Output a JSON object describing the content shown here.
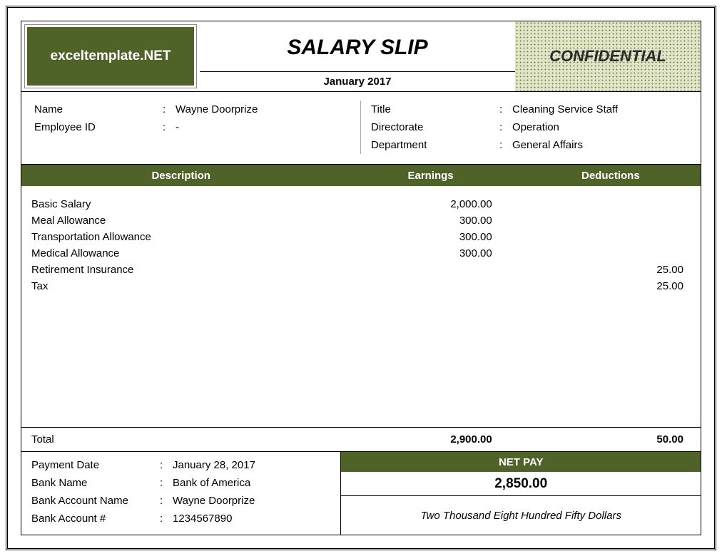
{
  "brand": "exceltemplate.NET",
  "title": "SALARY SLIP",
  "period": "January 2017",
  "confidential": "CONFIDENTIAL",
  "colors": {
    "accent": "#4f6228",
    "confidential_bg": "#e0e4c8",
    "border": "#000000"
  },
  "employee_left": {
    "name_label": "Name",
    "name_value": "Wayne Doorprize",
    "id_label": "Employee ID",
    "id_value": "-"
  },
  "employee_right": {
    "title_label": "Title",
    "title_value": "Cleaning Service Staff",
    "directorate_label": "Directorate",
    "directorate_value": "Operation",
    "department_label": "Department",
    "department_value": "General Affairs"
  },
  "columns": {
    "description": "Description",
    "earnings": "Earnings",
    "deductions": "Deductions"
  },
  "items": [
    {
      "desc": "Basic Salary",
      "earn": "2,000.00",
      "ded": ""
    },
    {
      "desc": "Meal Allowance",
      "earn": "300.00",
      "ded": ""
    },
    {
      "desc": "Transportation Allowance",
      "earn": "300.00",
      "ded": ""
    },
    {
      "desc": "Medical Allowance",
      "earn": "300.00",
      "ded": ""
    },
    {
      "desc": "Retirement Insurance",
      "earn": "",
      "ded": "25.00"
    },
    {
      "desc": "Tax",
      "earn": "",
      "ded": "25.00"
    }
  ],
  "totals": {
    "label": "Total",
    "earnings": "2,900.00",
    "deductions": "50.00"
  },
  "payment": {
    "date_label": "Payment Date",
    "date_value": "January 28, 2017",
    "bank_label": "Bank Name",
    "bank_value": "Bank of America",
    "acct_name_label": "Bank Account Name",
    "acct_name_value": "Wayne Doorprize",
    "acct_num_label": "Bank Account #",
    "acct_num_value": "1234567890"
  },
  "netpay": {
    "label": "NET PAY",
    "value": "2,850.00",
    "words": "Two Thousand Eight Hundred Fifty Dollars"
  }
}
